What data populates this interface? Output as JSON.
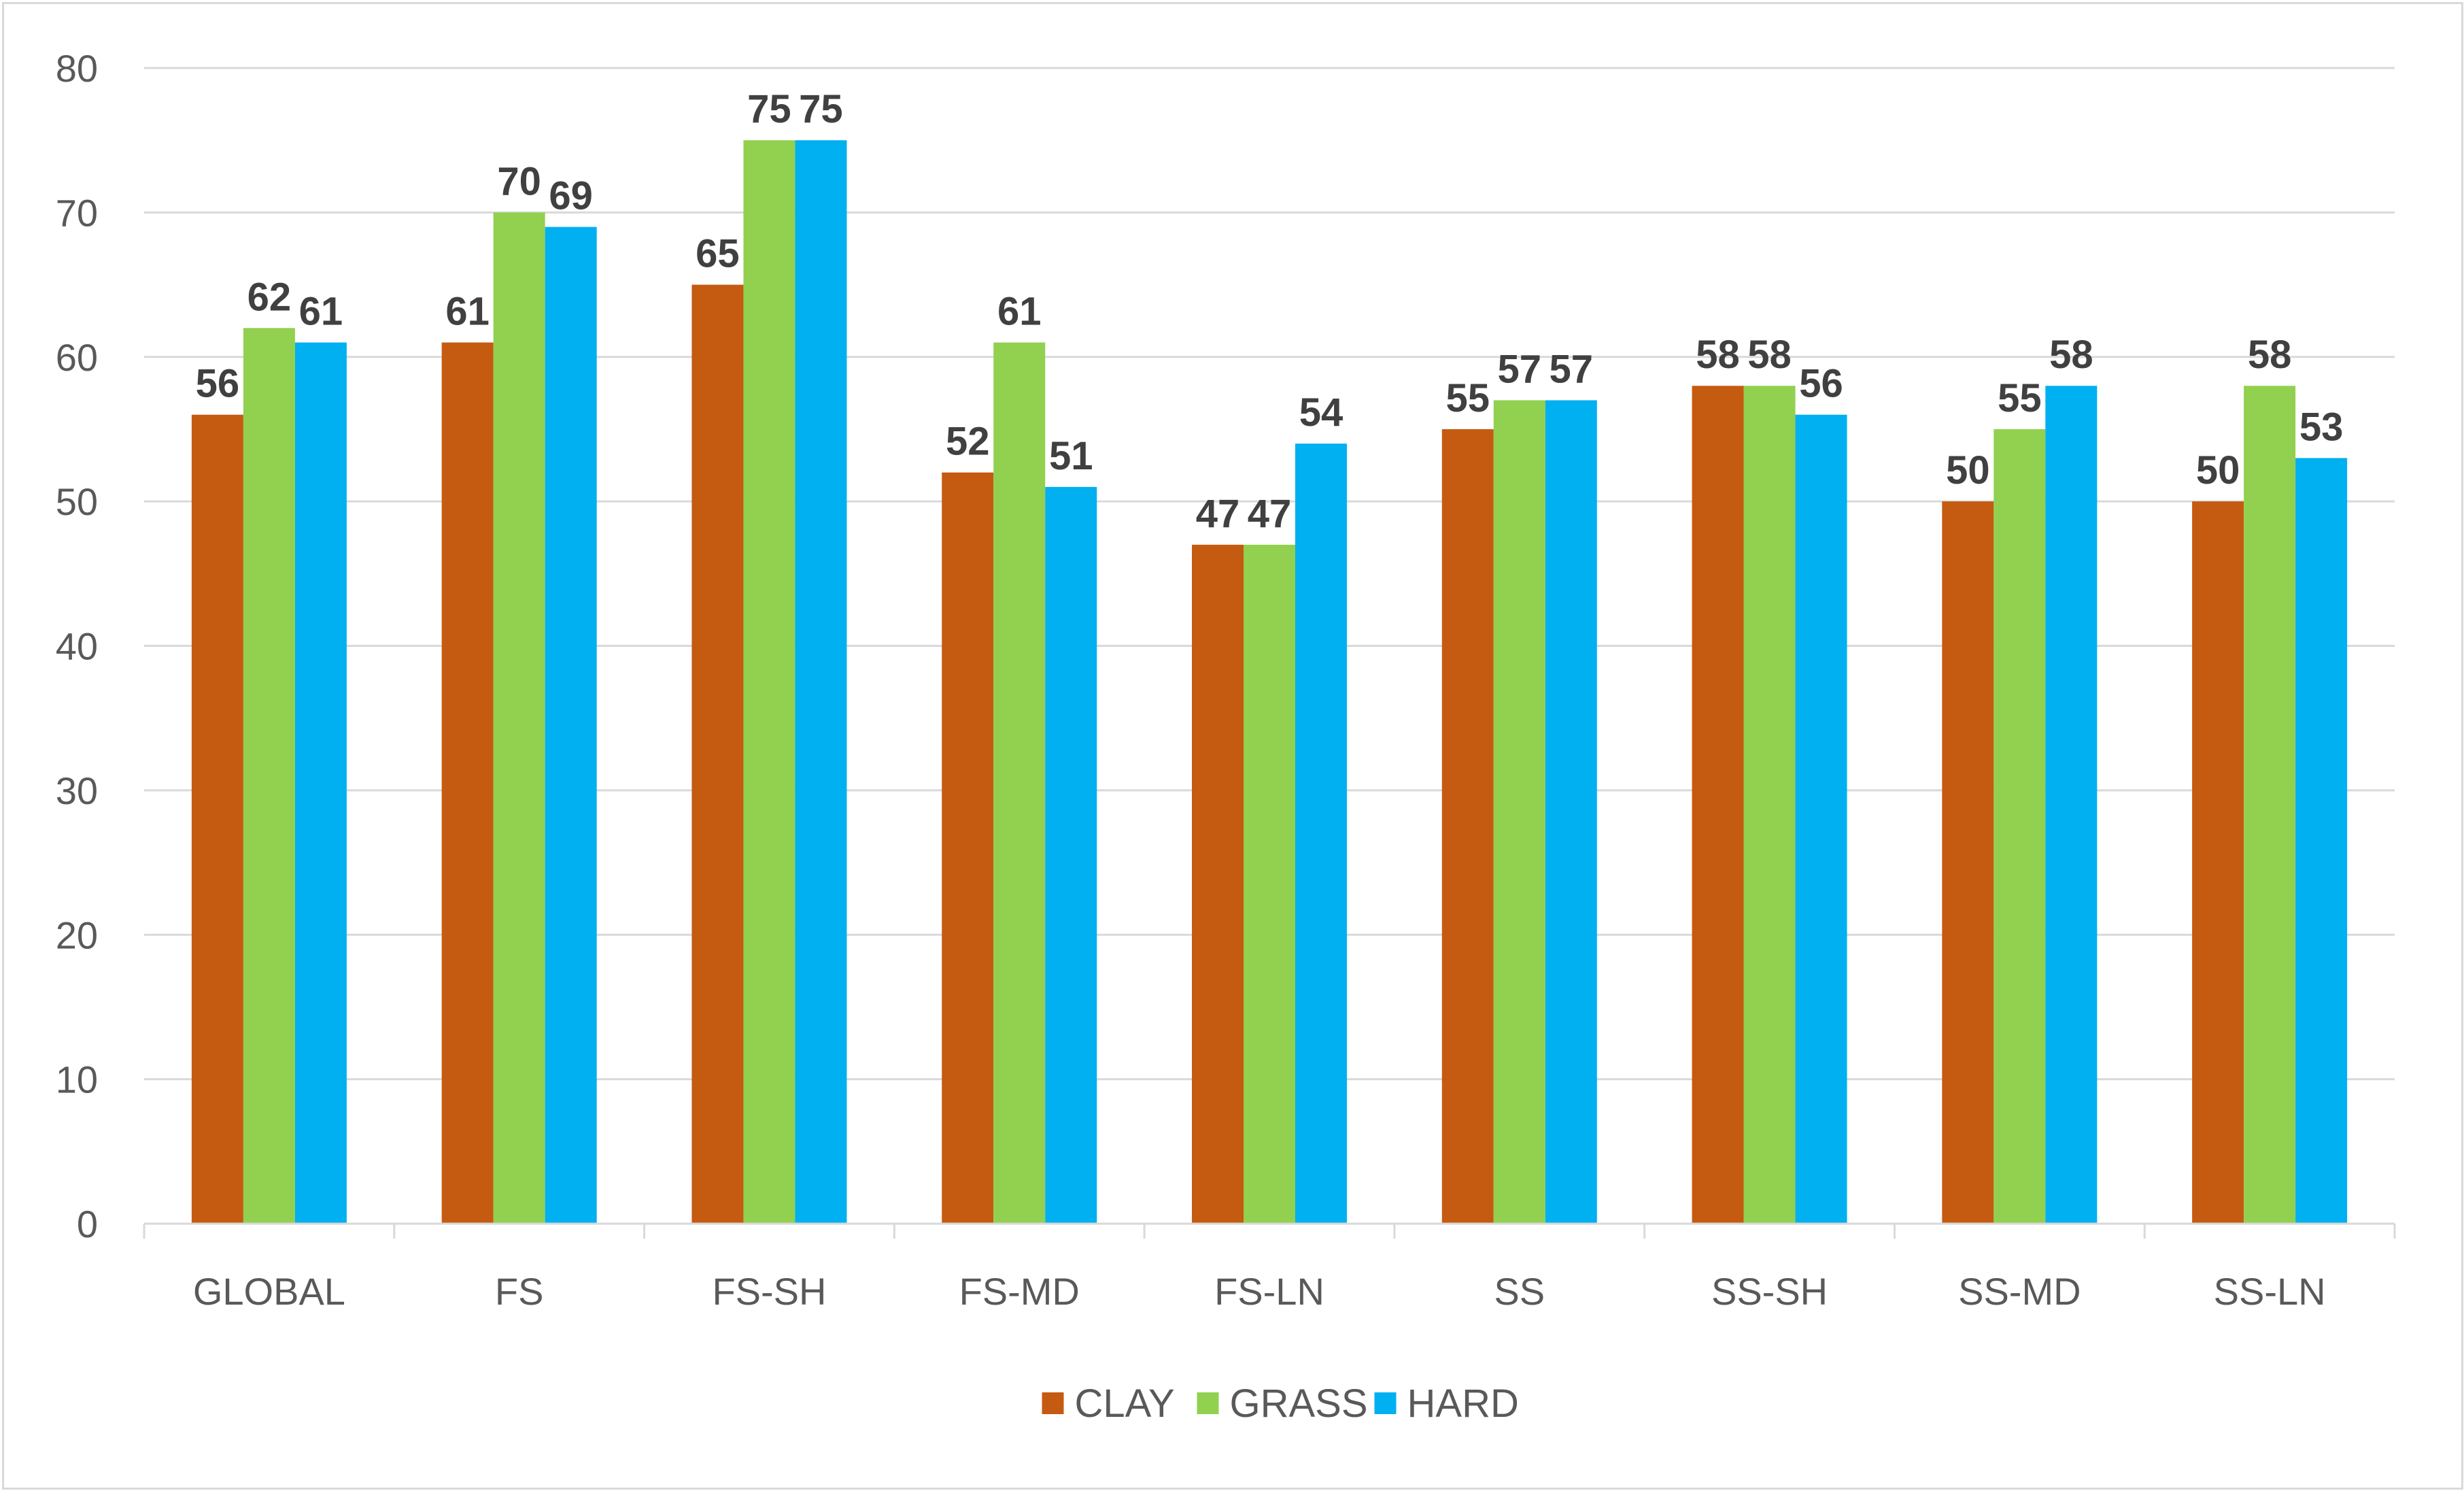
{
  "chart_data": {
    "type": "bar",
    "title": "",
    "xlabel": "",
    "ylabel": "",
    "ylim": [
      0,
      80
    ],
    "yticks": [
      0,
      10,
      20,
      30,
      40,
      50,
      60,
      70,
      80
    ],
    "grid": true,
    "legend_position": "bottom",
    "categories": [
      "GLOBAL",
      "FS",
      "FS-SH",
      "FS-MD",
      "FS-LN",
      "SS",
      "SS-SH",
      "SS-MD",
      "SS-LN"
    ],
    "series": [
      {
        "name": "CLAY",
        "color": "#c55a11",
        "values": [
          56,
          61,
          65,
          52,
          47,
          55,
          58,
          50,
          50
        ]
      },
      {
        "name": "GRASS",
        "color": "#92d050",
        "values": [
          62,
          70,
          75,
          61,
          47,
          57,
          58,
          55,
          58
        ]
      },
      {
        "name": "HARD",
        "color": "#00b0f0",
        "values": [
          61,
          69,
          75,
          51,
          54,
          57,
          56,
          58,
          53
        ]
      }
    ]
  }
}
